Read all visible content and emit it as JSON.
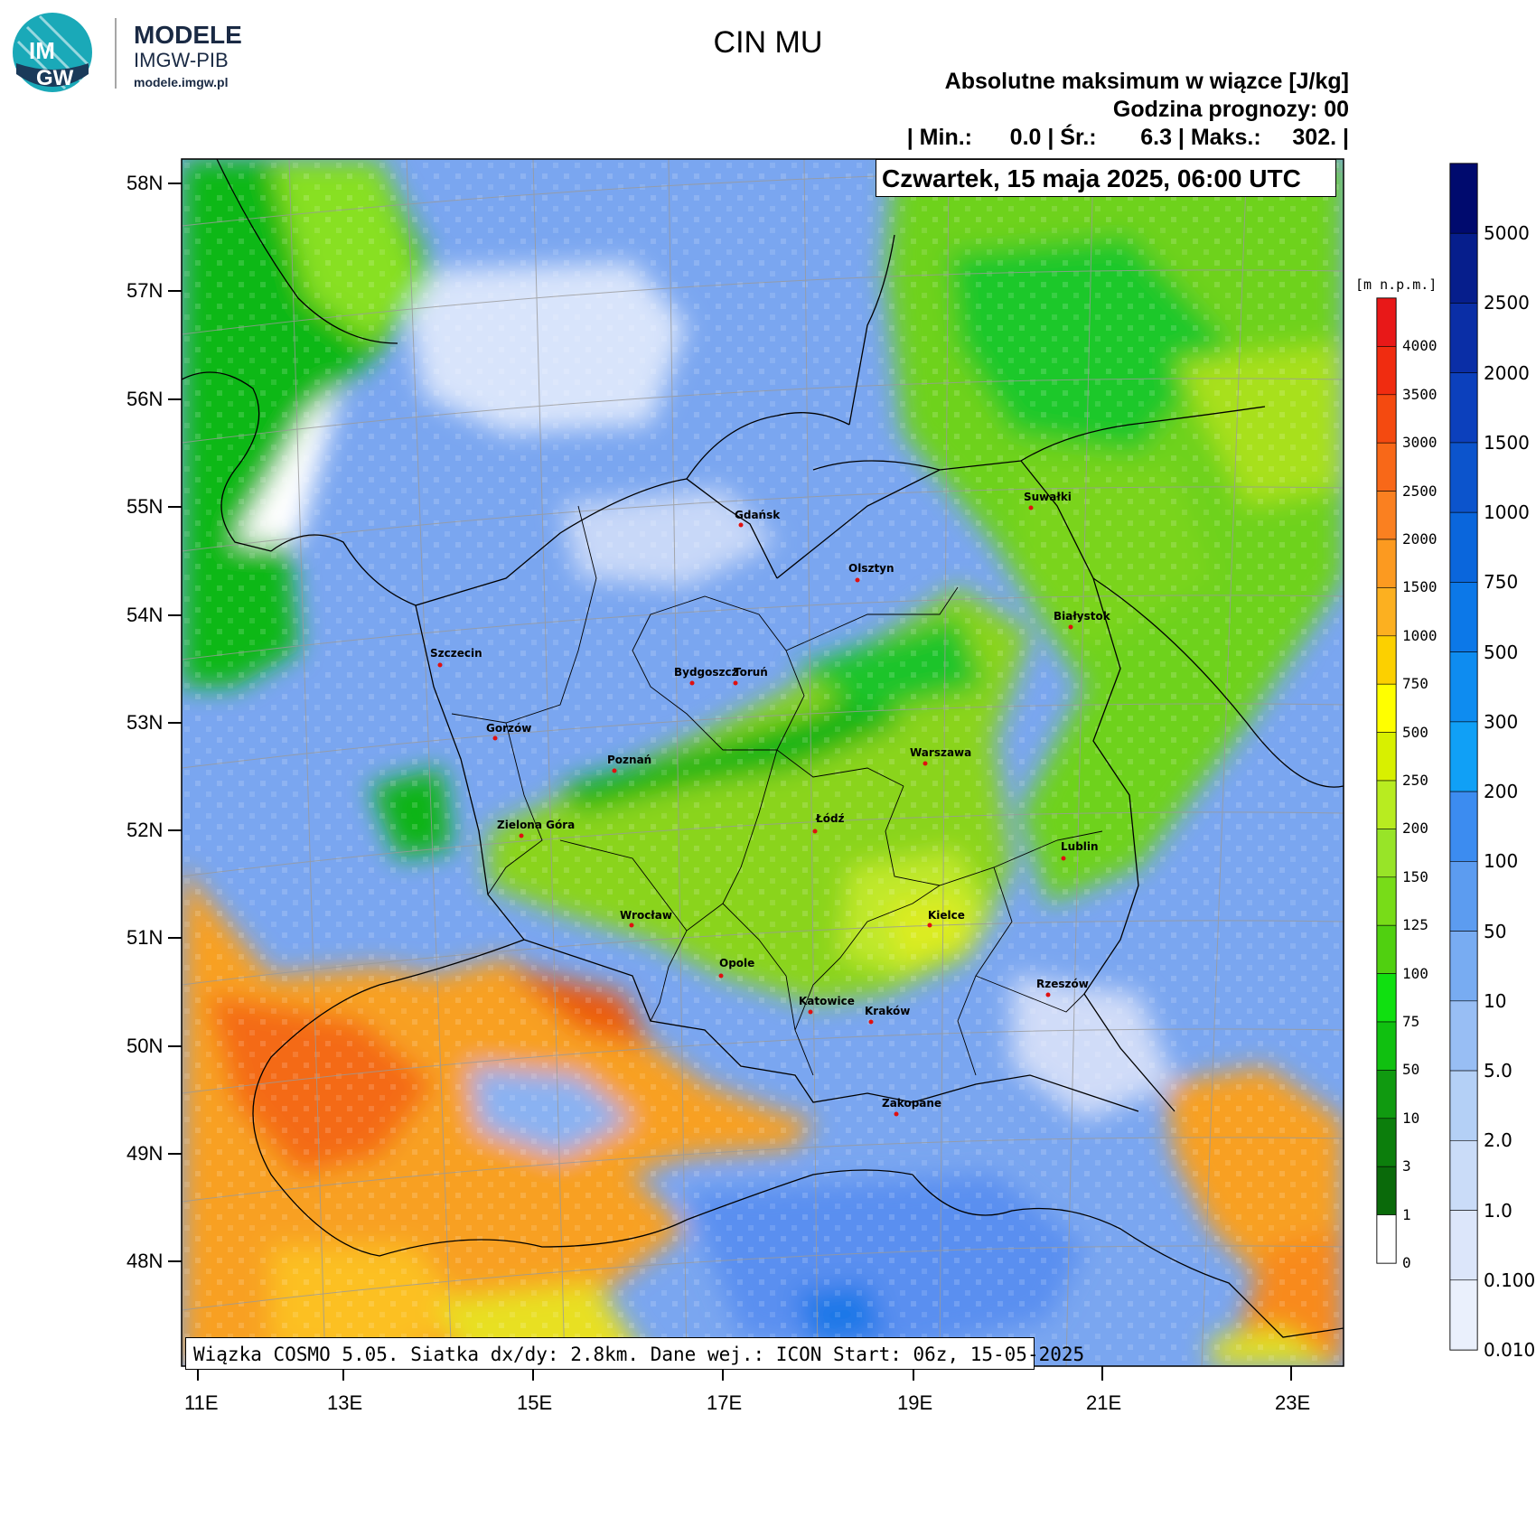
{
  "logo": {
    "badge_top": "IM",
    "badge_bottom": "GW",
    "brand": "MODELE",
    "org": "IMGW-PIB",
    "url": "modele.imgw.pl"
  },
  "header": {
    "title": "CIN MU",
    "subtitle": "Absolutne maksimum w wiązce [J/kg]",
    "forecast_hour": "Godzina prognozy: 00",
    "stats": "| Min.:      0.0 | Śr.:       6.3 | Maks.:     302. |",
    "date": "Czwartek, 15 maja 2025, 06:00 UTC"
  },
  "footer": {
    "info": "Wiązka COSMO 5.05. Siatka dx/dy: 2.8km. Dane wej.: ICON Start: 06z, 15-05-2025"
  },
  "map": {
    "lat_labels": [
      "58N",
      "57N",
      "56N",
      "55N",
      "54N",
      "53N",
      "52N",
      "51N",
      "50N",
      "49N",
      "48N"
    ],
    "lon_labels": [
      "11E",
      "13E",
      "15E",
      "17E",
      "19E",
      "21E",
      "23E"
    ],
    "cities": [
      {
        "name": "Gdańsk"
      },
      {
        "name": "Olsztyn"
      },
      {
        "name": "Suwałki"
      },
      {
        "name": "Białystok"
      },
      {
        "name": "Szczecin"
      },
      {
        "name": "Bydgoszcz"
      },
      {
        "name": "Toruń"
      },
      {
        "name": "Gorzów"
      },
      {
        "name": "Poznań"
      },
      {
        "name": "Warszawa"
      },
      {
        "name": "Zielona Góra"
      },
      {
        "name": "Łódź"
      },
      {
        "name": "Lublin"
      },
      {
        "name": "Wrocław"
      },
      {
        "name": "Kielce"
      },
      {
        "name": "Opole"
      },
      {
        "name": "Rzeszów"
      },
      {
        "name": "Katowice"
      },
      {
        "name": "Kraków"
      },
      {
        "name": "Zakopane"
      }
    ]
  },
  "elevation_bar": {
    "unit": "[m n.p.m.]",
    "labels": [
      "4000",
      "3500",
      "3000",
      "2500",
      "2000",
      "1500",
      "1000",
      "750",
      "500",
      "250",
      "200",
      "150",
      "125",
      "100",
      "75",
      "50",
      "10",
      "3",
      "1",
      "0"
    ],
    "colors": [
      "#e81818",
      "#f02c10",
      "#f44a10",
      "#f86818",
      "#fa8020",
      "#fc9a20",
      "#fcb020",
      "#fcd000",
      "#ffff00",
      "#d8f000",
      "#b8ec20",
      "#98e428",
      "#78dc18",
      "#50d010",
      "#10e010",
      "#10c010",
      "#109a10",
      "#0c7e0c",
      "#0a6a0a",
      "#ffffff"
    ]
  },
  "cin_bar": {
    "labels": [
      "5000",
      "2500",
      "2000",
      "1500",
      "1000",
      "750",
      "500",
      "300",
      "200",
      "100",
      "50",
      "10",
      "5.0",
      "2.0",
      "1.0",
      "0.100",
      "0.010"
    ],
    "colors": [
      "#000a6e",
      "#061e8c",
      "#0a2ea6",
      "#0c40bc",
      "#0c54cc",
      "#0a66dc",
      "#0c78e8",
      "#0e8cf0",
      "#10a0f6",
      "#3c8cf0",
      "#5c9cf0",
      "#78acf2",
      "#98bef4",
      "#b4d0f6",
      "#cadcf8",
      "#dce6fa",
      "#eaf0fc"
    ]
  }
}
